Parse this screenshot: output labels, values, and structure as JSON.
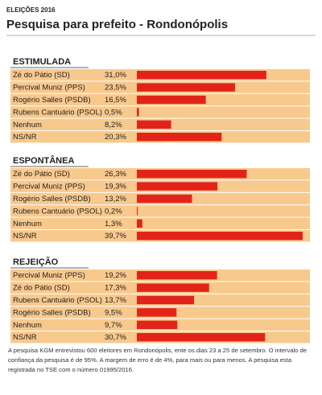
{
  "kicker": "ELEIÇÕES 2016",
  "title": "Pesquisa para prefeito - Rondonópolis",
  "note": "A pesquisa KGM entrevistou 600 eleitores em Rondonópolis, ente os dias 23 a 25 de setembro. O intervalo de confiança da pesquisa é de 95%. A margem de erro é de 4%, para mais ou para menos. A pesquisa esta registrada no TSE com o número 01995/2016.",
  "chart_data": [
    {
      "type": "bar",
      "title": "ESTIMULADA",
      "color": "#e2231a",
      "categories": [
        "Zé do Pátio (SD)",
        "Percival Muniz (PPS)",
        "Rogério Salles (PSDB)",
        "Rubens Cantuário (PSOL)",
        "Nenhum",
        "NS/NR"
      ],
      "values": [
        31.0,
        23.5,
        16.5,
        0.5,
        8.2,
        20.3
      ],
      "value_labels": [
        "31,0%",
        "23,5%",
        "16,5%",
        "0,5%",
        "8,2%",
        "20,3%"
      ]
    },
    {
      "type": "bar",
      "title": "ESPONTÂNEA",
      "color": "#e2231a",
      "categories": [
        "Zé do Pátio (SD)",
        "Percival Muniz (PPS)",
        "Rogério Salles (PSDB)",
        "Rubens Cantuário (PSOL)",
        "Nenhum",
        "NS/NR"
      ],
      "values": [
        26.3,
        19.3,
        13.2,
        0.2,
        1.3,
        39.7
      ],
      "value_labels": [
        "26,3%",
        "19,3%",
        "13,2%",
        "0,2%",
        "1,3%",
        "39,7%"
      ]
    },
    {
      "type": "bar",
      "title": "REJEIÇÃO",
      "color": "#e2231a",
      "categories": [
        "Percival Muniz (PPS)",
        "Zé do Pátio (SD)",
        "Rubens Cantuário (PSOL)",
        "Rogério Salles (PSDB)",
        "Nenhum",
        "NS/NR"
      ],
      "values": [
        19.2,
        17.3,
        13.7,
        9.5,
        9.7,
        30.7
      ],
      "value_labels": [
        "19,2%",
        "17,3%",
        "13,7%",
        "9,5%",
        "9,7%",
        "30,7%"
      ]
    }
  ]
}
